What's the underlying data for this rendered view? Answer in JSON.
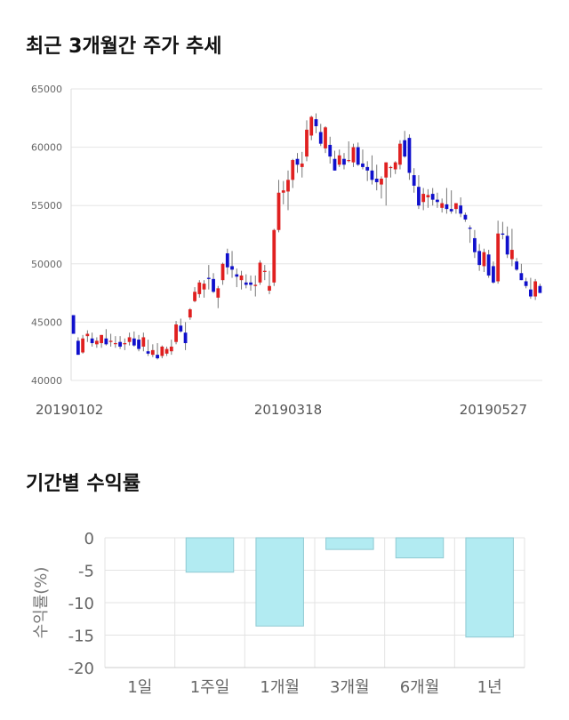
{
  "sections": {
    "price_title": "최근 3개월간 주가 추세",
    "returns_title": "기간별 수익률"
  },
  "chart_data": [
    {
      "type": "candlestick",
      "title": "최근 3개월간 주가 추세",
      "ylim": [
        40000,
        65000
      ],
      "yticks": [
        40000,
        45000,
        50000,
        55000,
        60000,
        65000
      ],
      "xtick_labels": [
        "20190102",
        "20190318",
        "20190527"
      ],
      "xtick_indices": [
        0,
        46,
        90
      ],
      "grid": true,
      "colors": {
        "up": "#e02020",
        "down": "#1010cc",
        "wick": "#777777"
      },
      "candles": [
        [
          45600,
          45600,
          44000,
          44000
        ],
        [
          43400,
          43700,
          42200,
          42200
        ],
        [
          42400,
          43900,
          42300,
          43600
        ],
        [
          43800,
          44300,
          43300,
          44000
        ],
        [
          43600,
          44100,
          42900,
          43200
        ],
        [
          43100,
          43700,
          42800,
          43400
        ],
        [
          43200,
          43900,
          42800,
          43900
        ],
        [
          43600,
          44400,
          43000,
          43100
        ],
        [
          43300,
          44000,
          42900,
          43400
        ],
        [
          43200,
          43800,
          42800,
          43200
        ],
        [
          43300,
          43800,
          42700,
          42900
        ],
        [
          43100,
          43600,
          42600,
          43200
        ],
        [
          43300,
          44100,
          43000,
          43700
        ],
        [
          43600,
          44200,
          42900,
          43000
        ],
        [
          43500,
          43900,
          42500,
          42700
        ],
        [
          42900,
          44100,
          42500,
          43700
        ],
        [
          42500,
          43500,
          42100,
          42300
        ],
        [
          42200,
          43100,
          42000,
          42600
        ],
        [
          42200,
          43200,
          41800,
          41900
        ],
        [
          42100,
          43000,
          41900,
          42900
        ],
        [
          42300,
          42900,
          42100,
          42700
        ],
        [
          42500,
          43500,
          42200,
          42900
        ],
        [
          43300,
          45100,
          43100,
          44800
        ],
        [
          44700,
          45300,
          44100,
          44200
        ],
        [
          44100,
          45000,
          42600,
          43200
        ],
        [
          45400,
          46200,
          45200,
          46100
        ],
        [
          46800,
          48000,
          46700,
          47600
        ],
        [
          47400,
          48600,
          47100,
          48400
        ],
        [
          47800,
          48600,
          47100,
          48300
        ],
        [
          48800,
          49900,
          47800,
          48700
        ],
        [
          48700,
          49200,
          47500,
          47600
        ],
        [
          47100,
          48100,
          46200,
          47900
        ],
        [
          48600,
          50100,
          48200,
          50000
        ],
        [
          50900,
          51300,
          49100,
          49700
        ],
        [
          49800,
          51100,
          48800,
          49500
        ],
        [
          49100,
          49600,
          48000,
          48900
        ],
        [
          48600,
          49400,
          47800,
          49000
        ],
        [
          48400,
          49100,
          47900,
          48200
        ],
        [
          48400,
          49000,
          47700,
          48200
        ],
        [
          48100,
          49000,
          47200,
          48200
        ],
        [
          48400,
          50300,
          48200,
          50100
        ],
        [
          49300,
          49900,
          48600,
          49400
        ],
        [
          47700,
          49400,
          47400,
          48100
        ],
        [
          48400,
          53000,
          48100,
          52900
        ],
        [
          52900,
          57200,
          52700,
          56100
        ],
        [
          56100,
          57100,
          55100,
          56300
        ],
        [
          56200,
          58000,
          54600,
          57200
        ],
        [
          57200,
          59000,
          56500,
          58900
        ],
        [
          59000,
          59500,
          57800,
          58500
        ],
        [
          58300,
          59600,
          57400,
          58600
        ],
        [
          59200,
          62300,
          58800,
          61500
        ],
        [
          61000,
          62700,
          60600,
          62600
        ],
        [
          62400,
          62900,
          61200,
          61800
        ],
        [
          61300,
          62000,
          60100,
          60300
        ],
        [
          59900,
          61800,
          59500,
          61700
        ],
        [
          60200,
          60900,
          58600,
          59200
        ],
        [
          59000,
          59700,
          58000,
          58000
        ],
        [
          58500,
          59800,
          58300,
          59300
        ],
        [
          59000,
          59500,
          58100,
          58500
        ],
        [
          58900,
          60500,
          58700,
          58900
        ],
        [
          58700,
          60300,
          58300,
          60000
        ],
        [
          60000,
          60400,
          58400,
          58500
        ],
        [
          58600,
          59800,
          58100,
          58300
        ],
        [
          58300,
          58800,
          57100,
          58000
        ],
        [
          58000,
          59300,
          56800,
          57200
        ],
        [
          57300,
          58500,
          56300,
          57000
        ],
        [
          56800,
          57500,
          55600,
          57300
        ],
        [
          57400,
          58700,
          55000,
          58700
        ],
        [
          58300,
          58400,
          57400,
          58300
        ],
        [
          58100,
          58800,
          57700,
          58700
        ],
        [
          58500,
          60600,
          58100,
          60300
        ],
        [
          60600,
          61400,
          59100,
          59200
        ],
        [
          60800,
          61100,
          57200,
          57800
        ],
        [
          57600,
          58200,
          56100,
          56700
        ],
        [
          56600,
          57600,
          54700,
          55000
        ],
        [
          55300,
          56500,
          54600,
          56000
        ],
        [
          55700,
          56400,
          54800,
          55900
        ],
        [
          56000,
          56500,
          55000,
          55500
        ],
        [
          55500,
          56100,
          54800,
          55300
        ],
        [
          54800,
          55600,
          54400,
          55200
        ],
        [
          55100,
          56500,
          54300,
          54700
        ],
        [
          54700,
          56300,
          54300,
          54500
        ],
        [
          54700,
          55200,
          54300,
          55200
        ],
        [
          55000,
          55700,
          54000,
          54300
        ],
        [
          54200,
          54400,
          53600,
          53800
        ],
        [
          53100,
          53300,
          51800,
          53000
        ],
        [
          52200,
          52900,
          50500,
          51000
        ],
        [
          51100,
          51700,
          49400,
          49900
        ],
        [
          49800,
          51300,
          49300,
          51000
        ],
        [
          50800,
          51200,
          48800,
          49000
        ],
        [
          49800,
          50200,
          48300,
          48400
        ],
        [
          48500,
          53700,
          48300,
          52600
        ],
        [
          52600,
          53600,
          52100,
          52500
        ],
        [
          52400,
          53200,
          50500,
          50800
        ],
        [
          50400,
          53000,
          49800,
          51200
        ],
        [
          50200,
          50500,
          49400,
          49500
        ],
        [
          49200,
          50000,
          48600,
          48600
        ],
        [
          48500,
          48800,
          47900,
          48100
        ],
        [
          47800,
          48800,
          47000,
          47200
        ],
        [
          47200,
          48700,
          46900,
          48500
        ],
        [
          48100,
          48300,
          47500,
          47500
        ]
      ]
    },
    {
      "type": "bar",
      "title": "기간별 수익률",
      "ylabel": "수익률(%)",
      "categories": [
        "1일",
        "1주일",
        "1개월",
        "3개월",
        "6개월",
        "1년"
      ],
      "values": [
        0,
        -5.3,
        -13.6,
        -1.8,
        -3.1,
        -15.3
      ],
      "ylim": [
        -20,
        0
      ],
      "yticks": [
        0,
        -5,
        -10,
        -15,
        -20
      ],
      "grid": true,
      "colors": {
        "bar": "#b2ebf2",
        "bar_border": "#8fc9d2"
      }
    }
  ]
}
